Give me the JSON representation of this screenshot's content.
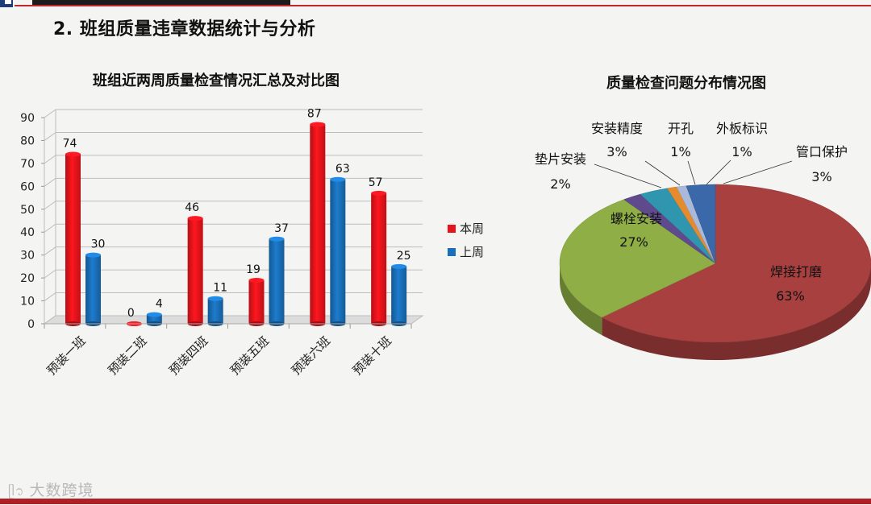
{
  "heading": "2. 班组质量违章数据统计与分析",
  "watermark": "大数跨境",
  "chart_data": [
    {
      "type": "bar",
      "title": "班组近两周质量检查情况汇总及对比图",
      "categories": [
        "预装一班",
        "预装二班",
        "预装四班",
        "预装五班",
        "预装六班",
        "预装十班"
      ],
      "series": [
        {
          "name": "本周",
          "values": [
            74,
            0,
            46,
            19,
            87,
            57
          ],
          "color": "#e8141b"
        },
        {
          "name": "上周",
          "values": [
            30,
            4,
            11,
            37,
            63,
            25
          ],
          "color": "#1a6fb8"
        }
      ],
      "yticks": [
        0,
        10,
        20,
        30,
        40,
        50,
        60,
        70,
        80,
        90
      ],
      "ylim": [
        0,
        90
      ],
      "legend": "right",
      "grid": true
    },
    {
      "type": "pie",
      "title": "质量检查问题分布情况图",
      "slices": [
        {
          "label": "焊接打磨",
          "pct": "63%",
          "value": 63,
          "color": "#a8403f"
        },
        {
          "label": "螺栓安装",
          "pct": "27%",
          "value": 27,
          "color": "#8fae45"
        },
        {
          "label": "垫片安装",
          "pct": "2%",
          "value": 2,
          "color": "#5e4a8c"
        },
        {
          "label": "安装精度",
          "pct": "3%",
          "value": 3,
          "color": "#3096b0"
        },
        {
          "label": "开孔",
          "pct": "1%",
          "value": 1,
          "color": "#e68a2e"
        },
        {
          "label": "外板标识",
          "pct": "1%",
          "value": 1,
          "color": "#a9b9d9"
        },
        {
          "label": "管口保护",
          "pct": "3%",
          "value": 3,
          "color": "#3b68a8"
        }
      ]
    }
  ]
}
